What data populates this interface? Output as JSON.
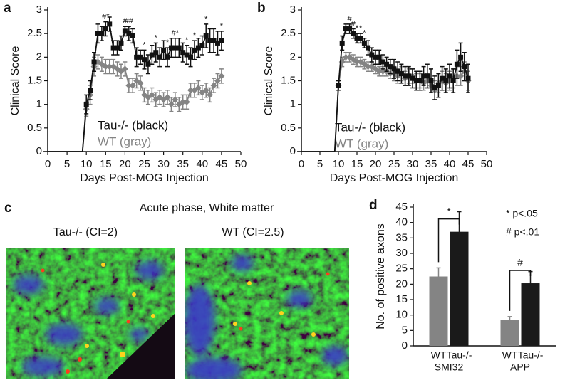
{
  "chart_data": [
    {
      "type": "line",
      "panel": "a",
      "xlabel": "Days Post-MOG Injection",
      "ylabel": "Clinical Score",
      "x": [
        0,
        9,
        10,
        11,
        12,
        13,
        14,
        15,
        16,
        17,
        18,
        19,
        20,
        21,
        22,
        23,
        24,
        25,
        26,
        27,
        28,
        29,
        30,
        31,
        32,
        33,
        34,
        35,
        36,
        37,
        38,
        39,
        40,
        41,
        42,
        43,
        44,
        45
      ],
      "xlim": [
        0,
        50
      ],
      "xticks": [
        0,
        5,
        10,
        15,
        20,
        25,
        30,
        35,
        40,
        45,
        50
      ],
      "ylim": [
        0,
        3
      ],
      "yticks": [
        0,
        0.5,
        1,
        1.5,
        2,
        2.5,
        3
      ],
      "series": [
        {
          "name": "Tau-/- (black)",
          "color": "#111111",
          "marker": "square",
          "values": [
            0,
            0,
            1.0,
            1.3,
            1.9,
            2.5,
            2.5,
            2.6,
            2.7,
            2.2,
            2.2,
            2.3,
            2.55,
            2.5,
            2.45,
            2.0,
            2.0,
            1.95,
            1.85,
            2.05,
            2.1,
            2.0,
            2.15,
            2.0,
            2.2,
            2.2,
            2.2,
            2.1,
            2.05,
            2.0,
            2.15,
            2.2,
            2.25,
            2.45,
            2.35,
            2.35,
            2.3,
            2.35
          ],
          "errors": [
            0,
            0,
            0.2,
            0.2,
            0.2,
            0.2,
            0.15,
            0.15,
            0.15,
            0.15,
            0.15,
            0.15,
            0.1,
            0.15,
            0.15,
            0.2,
            0.15,
            0.2,
            0.2,
            0.2,
            0.2,
            0.2,
            0.2,
            0.2,
            0.2,
            0.2,
            0.2,
            0.2,
            0.2,
            0.2,
            0.2,
            0.2,
            0.2,
            0.25,
            0.25,
            0.25,
            0.25,
            0.2
          ]
        },
        {
          "name": "WT (gray)",
          "color": "#848484",
          "marker": "diamond",
          "values": [
            0,
            0,
            0.9,
            1.2,
            1.8,
            1.9,
            1.85,
            1.8,
            1.8,
            1.8,
            1.75,
            1.7,
            1.75,
            1.4,
            1.4,
            1.5,
            1.45,
            1.2,
            1.15,
            1.2,
            1.1,
            1.15,
            1.1,
            1.15,
            1.0,
            1.1,
            1.0,
            1.05,
            1.05,
            1.3,
            1.3,
            1.35,
            1.25,
            1.3,
            1.2,
            1.4,
            1.5,
            1.6
          ],
          "errors": [
            0,
            0,
            0.15,
            0.2,
            0.2,
            0.15,
            0.15,
            0.15,
            0.15,
            0.15,
            0.15,
            0.15,
            0.15,
            0.15,
            0.15,
            0.15,
            0.15,
            0.15,
            0.15,
            0.15,
            0.15,
            0.15,
            0.15,
            0.15,
            0.15,
            0.15,
            0.15,
            0.15,
            0.15,
            0.15,
            0.15,
            0.15,
            0.15,
            0.15,
            0.15,
            0.15,
            0.15,
            0.15
          ]
        }
      ],
      "annotations": [
        {
          "text": "#*",
          "x": 15
        },
        {
          "text": "#",
          "x": 20
        },
        {
          "text": "##",
          "x": 21
        },
        {
          "text": "*",
          "x": 25
        },
        {
          "text": "*",
          "x": 28
        },
        {
          "text": "*",
          "x": 31
        },
        {
          "text": "#*",
          "x": 33
        },
        {
          "text": "*",
          "x": 36
        },
        {
          "text": "*",
          "x": 38
        },
        {
          "text": "*",
          "x": 41
        },
        {
          "text": "*",
          "x": 45
        }
      ]
    },
    {
      "type": "line",
      "panel": "b",
      "xlabel": "Days Post-MOG Injection",
      "ylabel": "Clinical Score",
      "x": [
        0,
        9,
        10,
        11,
        12,
        13,
        14,
        15,
        16,
        17,
        18,
        19,
        20,
        21,
        22,
        23,
        24,
        25,
        26,
        27,
        28,
        29,
        30,
        31,
        32,
        33,
        34,
        35,
        36,
        37,
        38,
        39,
        40,
        41,
        42,
        43,
        44,
        45
      ],
      "xlim": [
        0,
        50
      ],
      "xticks": [
        0,
        5,
        10,
        15,
        20,
        25,
        30,
        35,
        40,
        45,
        50
      ],
      "ylim": [
        0,
        3
      ],
      "yticks": [
        0,
        0.5,
        1,
        1.5,
        2,
        2.5,
        3
      ],
      "series": [
        {
          "name": "Tau-/- (black)",
          "color": "#111111",
          "marker": "square",
          "values": [
            0,
            0,
            1.4,
            2.3,
            2.6,
            2.6,
            2.5,
            2.4,
            2.4,
            2.3,
            2.2,
            2.05,
            2.0,
            2.0,
            1.9,
            1.85,
            1.8,
            1.75,
            1.7,
            1.65,
            1.6,
            1.6,
            1.55,
            1.5,
            1.5,
            1.6,
            1.6,
            1.5,
            1.35,
            1.4,
            1.55,
            1.5,
            1.6,
            1.5,
            1.85,
            2.0,
            1.8,
            1.55
          ],
          "errors": [
            0,
            0,
            0.1,
            0.15,
            0.1,
            0.1,
            0.1,
            0.1,
            0.1,
            0.1,
            0.15,
            0.15,
            0.15,
            0.15,
            0.15,
            0.15,
            0.15,
            0.2,
            0.2,
            0.2,
            0.2,
            0.2,
            0.2,
            0.2,
            0.2,
            0.2,
            0.25,
            0.25,
            0.25,
            0.25,
            0.25,
            0.25,
            0.25,
            0.25,
            0.3,
            0.3,
            0.3,
            0.3
          ]
        },
        {
          "name": "WT (gray)",
          "color": "#848484",
          "marker": "diamond",
          "values": [
            0,
            0,
            1.4,
            1.9,
            2.0,
            2.0,
            1.95,
            1.9,
            1.9,
            1.85,
            1.8,
            1.8,
            1.75,
            1.7,
            1.7,
            1.7,
            1.65,
            1.65,
            1.6,
            1.65,
            1.55,
            1.6,
            1.6,
            1.5,
            1.5,
            1.45,
            1.5,
            1.4,
            1.3,
            1.45,
            1.5,
            1.45,
            1.5,
            1.55,
            1.6,
            1.6,
            1.7,
            1.5
          ],
          "errors": [
            0,
            0,
            0.1,
            0.1,
            0.1,
            0.1,
            0.1,
            0.1,
            0.1,
            0.1,
            0.1,
            0.1,
            0.1,
            0.1,
            0.1,
            0.1,
            0.1,
            0.15,
            0.15,
            0.15,
            0.15,
            0.15,
            0.15,
            0.15,
            0.15,
            0.15,
            0.15,
            0.15,
            0.2,
            0.2,
            0.2,
            0.2,
            0.2,
            0.2,
            0.2,
            0.2,
            0.2,
            0.2
          ]
        }
      ],
      "annotations": [
        {
          "text": "#",
          "x": 13
        },
        {
          "text": "#",
          "x": 14
        },
        {
          "text": "*",
          "x": 15
        },
        {
          "text": "*",
          "x": 16
        },
        {
          "text": "*",
          "x": 17
        }
      ]
    },
    {
      "type": "bar",
      "panel": "d",
      "ylabel": "No. of positive axons",
      "categories": [
        "SMI32",
        "APP"
      ],
      "ylim": [
        0,
        45
      ],
      "yticks": [
        0,
        5,
        10,
        15,
        20,
        25,
        30,
        35,
        40,
        45
      ],
      "series": [
        {
          "name": "WT",
          "color": "#848484",
          "values": [
            22.5,
            8.5
          ],
          "errors": [
            2.8,
            1.0
          ]
        },
        {
          "name": "Tau-/-",
          "color": "#1a1a1a",
          "values": [
            37,
            20.3
          ],
          "errors": [
            6.5,
            3.8
          ]
        }
      ],
      "significance": [
        "*",
        "#"
      ],
      "notes": [
        "* p<.05",
        "# p<.01"
      ]
    }
  ],
  "panel_c": {
    "panel": "c",
    "title": "Acute phase, White matter",
    "images": [
      {
        "label": "Tau-/- (CI=2)"
      },
      {
        "label": "WT (CI=2.5)"
      }
    ]
  }
}
